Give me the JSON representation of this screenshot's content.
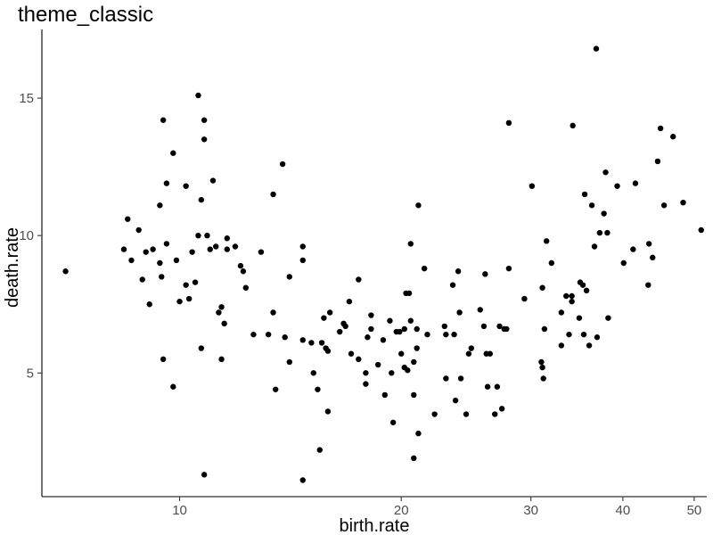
{
  "chart_data": {
    "type": "scatter",
    "title": "theme_classic",
    "xlabel": "birth.rate",
    "ylabel": "death.rate",
    "x_scale": "log10",
    "xlim": [
      6.5,
      52
    ],
    "ylim": [
      0.5,
      17.5
    ],
    "x_ticks": [
      10,
      20,
      30,
      40,
      50
    ],
    "x_tick_labels": [
      "10",
      "20",
      "30",
      "40",
      "50"
    ],
    "y_ticks": [
      5,
      10,
      15
    ],
    "y_tick_labels": [
      "5",
      "10",
      "15"
    ],
    "grid": false,
    "legend": "none",
    "point_color": "#000000",
    "axis_color": "#000000",
    "tick_label_color": "#4d4d4d",
    "points": [
      [
        7.0,
        8.7
      ],
      [
        8.4,
        9.5
      ],
      [
        8.5,
        10.6
      ],
      [
        8.6,
        9.1
      ],
      [
        8.8,
        10.2
      ],
      [
        8.9,
        8.4
      ],
      [
        9.0,
        9.4
      ],
      [
        9.1,
        7.5
      ],
      [
        9.2,
        9.5
      ],
      [
        9.4,
        11.1
      ],
      [
        9.4,
        9.0
      ],
      [
        9.45,
        8.5
      ],
      [
        9.5,
        14.2
      ],
      [
        9.5,
        5.5
      ],
      [
        9.6,
        11.9
      ],
      [
        9.6,
        9.7
      ],
      [
        9.8,
        13.0
      ],
      [
        9.8,
        4.5
      ],
      [
        9.9,
        9.1
      ],
      [
        10.0,
        7.6
      ],
      [
        10.2,
        11.8
      ],
      [
        10.2,
        8.2
      ],
      [
        10.3,
        7.7
      ],
      [
        10.4,
        9.4
      ],
      [
        10.5,
        8.3
      ],
      [
        10.6,
        15.1
      ],
      [
        10.6,
        10.0
      ],
      [
        10.7,
        11.3
      ],
      [
        10.8,
        14.2
      ],
      [
        10.8,
        13.5
      ],
      [
        10.7,
        5.9
      ],
      [
        10.8,
        1.3
      ],
      [
        10.9,
        10.0
      ],
      [
        11.0,
        9.5
      ],
      [
        11.1,
        12.0
      ],
      [
        11.2,
        9.6
      ],
      [
        11.3,
        7.2
      ],
      [
        11.4,
        7.4
      ],
      [
        11.4,
        5.5
      ],
      [
        11.5,
        6.8
      ],
      [
        11.6,
        9.9
      ],
      [
        11.6,
        9.5
      ],
      [
        11.9,
        9.6
      ],
      [
        12.1,
        8.9
      ],
      [
        12.2,
        8.7
      ],
      [
        12.3,
        8.1
      ],
      [
        12.6,
        6.4
      ],
      [
        12.9,
        9.4
      ],
      [
        13.2,
        6.4
      ],
      [
        13.4,
        11.5
      ],
      [
        13.4,
        7.2
      ],
      [
        13.5,
        4.4
      ],
      [
        13.8,
        12.6
      ],
      [
        13.9,
        6.3
      ],
      [
        14.1,
        8.5
      ],
      [
        14.1,
        5.4
      ],
      [
        14.7,
        9.6
      ],
      [
        14.7,
        9.1
      ],
      [
        14.7,
        6.2
      ],
      [
        14.7,
        1.1
      ],
      [
        15.1,
        6.1
      ],
      [
        15.2,
        5.0
      ],
      [
        15.4,
        4.4
      ],
      [
        15.5,
        2.2
      ],
      [
        15.6,
        6.1
      ],
      [
        15.7,
        7.0
      ],
      [
        15.8,
        5.9
      ],
      [
        15.9,
        5.8
      ],
      [
        15.9,
        3.6
      ],
      [
        16.0,
        7.2
      ],
      [
        16.5,
        6.5
      ],
      [
        16.7,
        6.8
      ],
      [
        16.8,
        6.7
      ],
      [
        17.0,
        7.6
      ],
      [
        17.1,
        5.7
      ],
      [
        17.5,
        8.4
      ],
      [
        17.5,
        5.5
      ],
      [
        17.9,
        5.0
      ],
      [
        17.9,
        4.6
      ],
      [
        18.0,
        6.3
      ],
      [
        18.2,
        7.1
      ],
      [
        18.2,
        6.6
      ],
      [
        18.6,
        5.3
      ],
      [
        18.9,
        6.2
      ],
      [
        19.0,
        4.2
      ],
      [
        19.3,
        6.9
      ],
      [
        19.4,
        5.0
      ],
      [
        19.5,
        3.2
      ],
      [
        19.7,
        6.5
      ],
      [
        19.9,
        6.5
      ],
      [
        20.0,
        5.7
      ],
      [
        20.2,
        6.6
      ],
      [
        20.2,
        5.2
      ],
      [
        20.3,
        7.9
      ],
      [
        20.4,
        5.1
      ],
      [
        20.5,
        7.9
      ],
      [
        20.6,
        6.9
      ],
      [
        20.6,
        9.7
      ],
      [
        20.8,
        5.4
      ],
      [
        20.8,
        4.2
      ],
      [
        20.8,
        1.9
      ],
      [
        21.0,
        5.9
      ],
      [
        21.0,
        6.6
      ],
      [
        21.1,
        11.1
      ],
      [
        21.1,
        2.8
      ],
      [
        21.5,
        8.8
      ],
      [
        21.7,
        6.4
      ],
      [
        22.2,
        3.5
      ],
      [
        22.9,
        6.7
      ],
      [
        23.0,
        6.4
      ],
      [
        23.0,
        4.8
      ],
      [
        23.5,
        8.2
      ],
      [
        23.6,
        6.4
      ],
      [
        23.7,
        4.0
      ],
      [
        23.9,
        8.7
      ],
      [
        24.0,
        7.2
      ],
      [
        24.1,
        4.8
      ],
      [
        24.5,
        3.5
      ],
      [
        24.7,
        5.7
      ],
      [
        24.9,
        5.9
      ],
      [
        25.6,
        7.3
      ],
      [
        25.9,
        6.7
      ],
      [
        26.0,
        8.6
      ],
      [
        26.1,
        5.7
      ],
      [
        26.2,
        4.5
      ],
      [
        26.4,
        5.7
      ],
      [
        26.8,
        3.5
      ],
      [
        27.0,
        4.5
      ],
      [
        27.2,
        6.7
      ],
      [
        27.4,
        3.7
      ],
      [
        27.6,
        6.6
      ],
      [
        27.8,
        6.6
      ],
      [
        28.0,
        8.8
      ],
      [
        28.0,
        14.1
      ],
      [
        29.4,
        7.7
      ],
      [
        30.1,
        11.8
      ],
      [
        31.0,
        5.4
      ],
      [
        31.1,
        5.2
      ],
      [
        31.1,
        8.1
      ],
      [
        31.2,
        4.8
      ],
      [
        31.3,
        6.6
      ],
      [
        31.5,
        9.8
      ],
      [
        32.0,
        9.0
      ],
      [
        33.0,
        6.0
      ],
      [
        33.0,
        7.2
      ],
      [
        33.5,
        7.8
      ],
      [
        33.8,
        6.4
      ],
      [
        34.1,
        7.8
      ],
      [
        34.1,
        7.6
      ],
      [
        34.2,
        14.0
      ],
      [
        34.9,
        7.0
      ],
      [
        35.0,
        8.3
      ],
      [
        35.3,
        8.2
      ],
      [
        35.4,
        6.4
      ],
      [
        35.5,
        11.5
      ],
      [
        35.7,
        8.0
      ],
      [
        36.0,
        6.0
      ],
      [
        36.3,
        11.1
      ],
      [
        36.6,
        9.6
      ],
      [
        36.8,
        16.8
      ],
      [
        36.9,
        6.3
      ],
      [
        37.2,
        10.1
      ],
      [
        37.7,
        10.8
      ],
      [
        37.9,
        12.3
      ],
      [
        38.1,
        10.1
      ],
      [
        38.2,
        7.0
      ],
      [
        39.3,
        11.8
      ],
      [
        40.1,
        9.0
      ],
      [
        41.3,
        9.5
      ],
      [
        41.6,
        11.9
      ],
      [
        43.3,
        8.2
      ],
      [
        43.4,
        9.7
      ],
      [
        43.9,
        9.2
      ],
      [
        44.6,
        12.7
      ],
      [
        45.0,
        13.9
      ],
      [
        45.5,
        11.1
      ],
      [
        46.8,
        13.6
      ],
      [
        48.3,
        11.2
      ],
      [
        51.1,
        10.2
      ]
    ]
  }
}
